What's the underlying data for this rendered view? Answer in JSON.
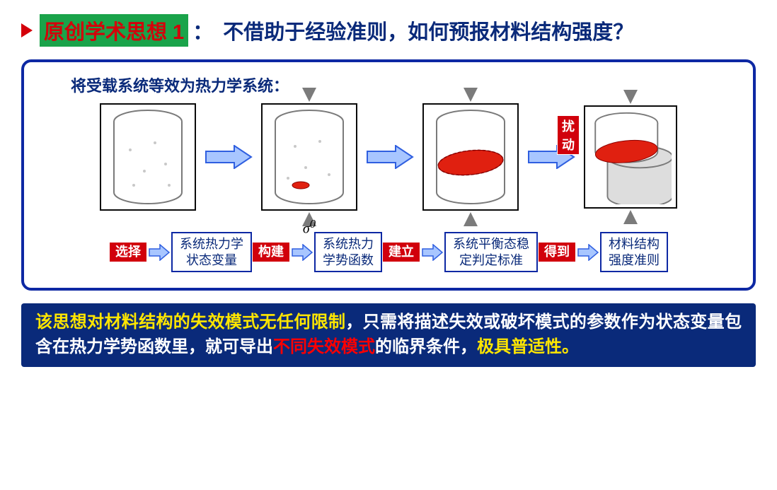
{
  "colors": {
    "navy": "#0a2a7a",
    "green": "#1aa34a",
    "red": "#d4000a",
    "redBright": "#d1000c",
    "textRed": "#ff0000",
    "yellow": "#ffe600",
    "panelBorder": "#0d28a3",
    "arrowFill": "#a8c6ff",
    "arrowStroke": "#2f5fe0",
    "grayArrow": "#7b7b7b",
    "white": "#ffffff",
    "boxBorder": "#0d28a3",
    "boxText": "#0a2a7a",
    "cylStroke": "#7a7a7a"
  },
  "title": {
    "badge": "原创学术思想 1",
    "colon": "：",
    "question": "不借助于经验准则，如何预报材料结构强度？"
  },
  "panel": {
    "caption": "将受载系统等效为热力学系统：",
    "sigma": "σ",
    "sigma_sup": "0",
    "perturb_label": "扰动"
  },
  "flow": [
    {
      "tag": "选择",
      "box": "系统热力学\n状态变量"
    },
    {
      "tag": "构建",
      "box": "系统热力\n学势函数"
    },
    {
      "tag": "建立",
      "box": "系统平衡态稳\n定判定标准"
    },
    {
      "tag": "得到",
      "box": "材料结构\n强度准则"
    }
  ],
  "footer": {
    "seg1": "该思想对材料结构的失效模式无任何限制",
    "seg2": "，只需将描述失效或破坏模式的参数作为状态变量包含在热力学势函数里，就可导出",
    "seg3": "不同失效模式",
    "seg4": "的临界条件，",
    "seg5": "极具普适性。"
  }
}
